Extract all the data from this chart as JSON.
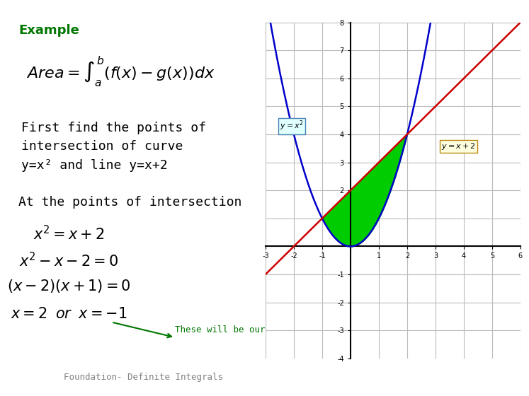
{
  "title": "Example",
  "formula_area": "Area = \\int_a^b (f(x) - g(x))\\, dx",
  "text1": "First find the points of\nintersection of curve\ny=x² and line y=x+2",
  "text2": "At the points of intersection",
  "eq1": "x^2 = x + 2",
  "eq2": "x^2 - x - 2 = 0",
  "eq3": "(x-2)(x+1) = 0",
  "eq4": "x = 2 \\;\\; \\textit{or} \\;\\; x = -1",
  "note": "These will be our limits of integration",
  "footer": "Foundation- Definite Integrals",
  "plot_xlim": [
    -3,
    6
  ],
  "plot_ylim": [
    -4,
    8
  ],
  "curve_color": "#0000cc",
  "line_color": "#cc0000",
  "fill_color": "#00cc00",
  "label_curve": "y = x²",
  "label_line": "y = x+2",
  "bg_color": "#ffffff",
  "grid_color": "#bbbbbb",
  "example_color": "#007700",
  "note_color": "#007700"
}
